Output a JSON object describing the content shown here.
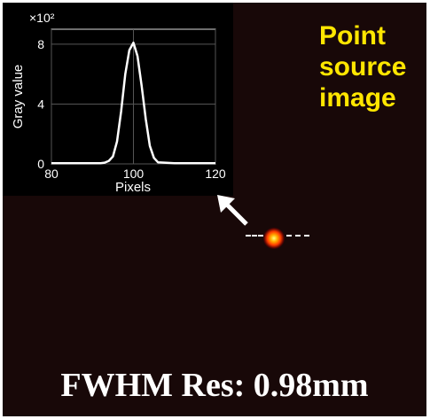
{
  "label": {
    "line1": "Point",
    "line2": "source",
    "line3": "image"
  },
  "caption": "FWHM Res: 0.98mm",
  "colors": {
    "background": "#180808",
    "label": "#ffe600",
    "caption": "#ffffff",
    "spot": "#ff4a00"
  },
  "chart_data": {
    "type": "line",
    "title": "",
    "xlabel": "Pixels",
    "ylabel": "Gray value",
    "y_multiplier_label": "×10²",
    "xlim": [
      80,
      120
    ],
    "ylim": [
      0,
      9
    ],
    "x_ticks": [
      "80",
      "100",
      "120"
    ],
    "y_ticks": [
      "0",
      "4",
      "8"
    ],
    "grid": true,
    "series": [
      {
        "values_x": [
          80,
          85,
          90,
          92,
          93,
          94,
          95,
          96,
          97,
          98,
          99,
          100,
          101,
          102,
          103,
          104,
          105,
          106,
          110,
          115,
          120
        ],
        "values_y": [
          0.05,
          0.05,
          0.05,
          0.05,
          0.08,
          0.2,
          0.5,
          1.5,
          3.5,
          6.0,
          7.6,
          8.1,
          7.2,
          5.2,
          3.0,
          1.2,
          0.4,
          0.1,
          0.05,
          0.05,
          0.05
        ]
      }
    ]
  }
}
